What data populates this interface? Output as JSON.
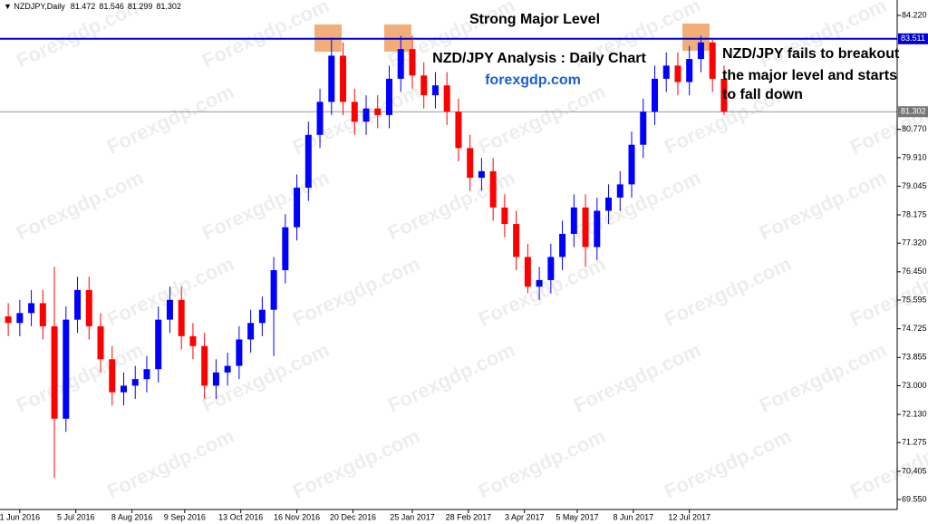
{
  "chart_data": {
    "type": "candlestick",
    "symbol": "NZDJPY,Daily",
    "ohlc": [
      81.472,
      81.546,
      81.299,
      81.302
    ],
    "title": "Strong Major Level",
    "subtitle": "NZD/JPY Analysis : Daily Chart",
    "site": "forexgdp.com",
    "annotation": [
      "NZD/JPY fails to breakout",
      "the major level and starts",
      "to fall down"
    ],
    "watermark": "Forexgdp.com",
    "x": [
      "2016-05-25",
      "2016-06-01",
      "2016-06-08",
      "2016-06-15",
      "2016-06-22",
      "2016-06-29",
      "2016-07-06",
      "2016-07-13",
      "2016-07-20",
      "2016-07-27",
      "2016-08-03",
      "2016-08-10",
      "2016-08-17",
      "2016-08-24",
      "2016-08-31",
      "2016-09-07",
      "2016-09-14",
      "2016-09-21",
      "2016-09-28",
      "2016-10-05",
      "2016-10-12",
      "2016-10-19",
      "2016-10-26",
      "2016-11-02",
      "2016-11-09",
      "2016-11-16",
      "2016-11-23",
      "2016-11-30",
      "2016-12-07",
      "2016-12-14",
      "2016-12-21",
      "2016-12-28",
      "2017-01-04",
      "2017-01-11",
      "2017-01-18",
      "2017-01-25",
      "2017-02-01",
      "2017-02-08",
      "2017-02-15",
      "2017-02-22",
      "2017-03-01",
      "2017-03-08",
      "2017-03-15",
      "2017-03-22",
      "2017-03-29",
      "2017-04-05",
      "2017-04-12",
      "2017-04-19",
      "2017-04-26",
      "2017-05-03",
      "2017-05-10",
      "2017-05-17",
      "2017-05-24",
      "2017-05-31",
      "2017-06-07",
      "2017-06-14",
      "2017-06-21",
      "2017-06-28",
      "2017-07-05",
      "2017-07-12",
      "2017-07-19",
      "2017-07-26",
      "2017-08-02"
    ],
    "open": [
      75.1,
      74.9,
      75.2,
      75.5,
      74.8,
      72.0,
      75.0,
      75.9,
      74.8,
      73.8,
      72.8,
      73.0,
      73.2,
      73.5,
      75.0,
      75.6,
      74.5,
      74.2,
      73.0,
      73.4,
      73.6,
      74.4,
      74.9,
      75.3,
      76.5,
      77.8,
      79.0,
      80.6,
      81.6,
      83.0,
      81.6,
      81.0,
      81.4,
      81.2,
      82.3,
      83.2,
      82.4,
      81.8,
      82.1,
      81.3,
      80.2,
      79.3,
      79.5,
      78.4,
      77.9,
      76.9,
      76.0,
      76.2,
      76.9,
      77.6,
      78.4,
      77.2,
      78.3,
      78.7,
      79.1,
      80.3,
      81.3,
      82.3,
      82.7,
      82.2,
      82.9,
      83.4,
      82.3
    ],
    "high": [
      75.5,
      75.6,
      75.9,
      75.9,
      76.6,
      75.4,
      76.3,
      76.3,
      75.2,
      74.2,
      73.4,
      73.6,
      73.9,
      75.4,
      76.0,
      76.0,
      74.9,
      74.6,
      73.8,
      74.0,
      74.8,
      75.3,
      75.7,
      76.9,
      78.2,
      79.4,
      81.0,
      82.0,
      83.55,
      83.4,
      82.0,
      81.8,
      81.8,
      82.7,
      83.6,
      83.6,
      82.8,
      82.5,
      82.5,
      81.7,
      80.6,
      79.9,
      79.9,
      78.8,
      78.3,
      77.3,
      76.6,
      77.3,
      78.0,
      78.8,
      78.8,
      78.7,
      79.1,
      79.5,
      80.7,
      81.7,
      82.7,
      83.1,
      83.1,
      83.3,
      83.6,
      83.5,
      82.7
    ],
    "low": [
      74.5,
      74.5,
      74.8,
      74.4,
      70.2,
      71.6,
      74.6,
      74.4,
      73.4,
      72.4,
      72.4,
      72.6,
      72.8,
      73.1,
      74.6,
      74.1,
      73.8,
      72.6,
      72.6,
      73.0,
      73.2,
      74.0,
      74.5,
      73.9,
      76.1,
      77.4,
      78.6,
      80.2,
      81.2,
      81.2,
      80.6,
      80.6,
      80.8,
      80.8,
      81.9,
      82.0,
      81.4,
      81.4,
      80.9,
      79.8,
      78.9,
      78.9,
      78.0,
      77.5,
      76.5,
      75.8,
      75.6,
      75.8,
      76.5,
      77.2,
      76.6,
      76.8,
      77.9,
      78.3,
      78.7,
      79.9,
      80.9,
      81.9,
      81.8,
      81.8,
      82.5,
      81.9,
      81.2
    ],
    "close": [
      74.9,
      75.2,
      75.5,
      74.8,
      72.0,
      75.0,
      75.9,
      74.8,
      73.8,
      72.8,
      73.0,
      73.2,
      73.5,
      75.0,
      75.6,
      74.5,
      74.2,
      73.0,
      73.4,
      73.6,
      74.4,
      74.9,
      75.3,
      76.5,
      77.8,
      79.0,
      80.6,
      81.6,
      83.0,
      81.6,
      81.0,
      81.4,
      81.2,
      82.3,
      83.2,
      82.4,
      81.8,
      82.1,
      81.3,
      80.2,
      79.3,
      79.5,
      78.4,
      77.9,
      76.9,
      76.0,
      76.2,
      76.9,
      77.6,
      78.4,
      77.2,
      78.3,
      78.7,
      79.1,
      80.3,
      81.3,
      82.3,
      82.7,
      82.2,
      82.9,
      83.4,
      82.3,
      81.302
    ],
    "up_color": "#0000ff",
    "down_color": "#ff0000",
    "xlim": [
      "2016-05-20",
      "2017-11-15"
    ],
    "xticks": [
      {
        "value": "2016-06-01",
        "label": "1 Jun 2016"
      },
      {
        "value": "2016-07-05",
        "label": "5 Jul 2016"
      },
      {
        "value": "2016-08-08",
        "label": "8 Aug 2016"
      },
      {
        "value": "2016-09-09",
        "label": "9 Sep 2016"
      },
      {
        "value": "2016-10-13",
        "label": "13 Oct 2016"
      },
      {
        "value": "2016-11-16",
        "label": "16 Nov 2016"
      },
      {
        "value": "2016-12-20",
        "label": "20 Dec 2016"
      },
      {
        "value": "2017-01-25",
        "label": "25 Jan 2017"
      },
      {
        "value": "2017-02-28",
        "label": "28 Feb 2017"
      },
      {
        "value": "2017-04-03",
        "label": "3 Apr 2017"
      },
      {
        "value": "2017-05-05",
        "label": "5 May 2017"
      },
      {
        "value": "2017-06-08",
        "label": "8 Jun 2017"
      },
      {
        "value": "2017-07-12",
        "label": "12 Jul 2017"
      }
    ],
    "ylim": [
      69.248,
      84.687
    ],
    "yticks": [
      {
        "value": 84.22,
        "label": "84.220"
      },
      {
        "value": 80.77,
        "label": "80.770"
      },
      {
        "value": 79.91,
        "label": "79.910"
      },
      79.045,
      78.175,
      {
        "value": 77.32,
        "label": "77.320"
      },
      {
        "value": 76.45,
        "label": "76.450"
      },
      75.595,
      74.725,
      73.855,
      {
        "value": 73,
        "label": "73.000"
      },
      {
        "value": 72.13,
        "label": "72.130"
      },
      71.275,
      70.405,
      {
        "value": 69.55,
        "label": "69.550"
      }
    ],
    "hlines": [
      {
        "value": 83.511,
        "color": "#0000cc"
      },
      {
        "value": 81.302,
        "color": "#777777"
      }
    ]
  }
}
